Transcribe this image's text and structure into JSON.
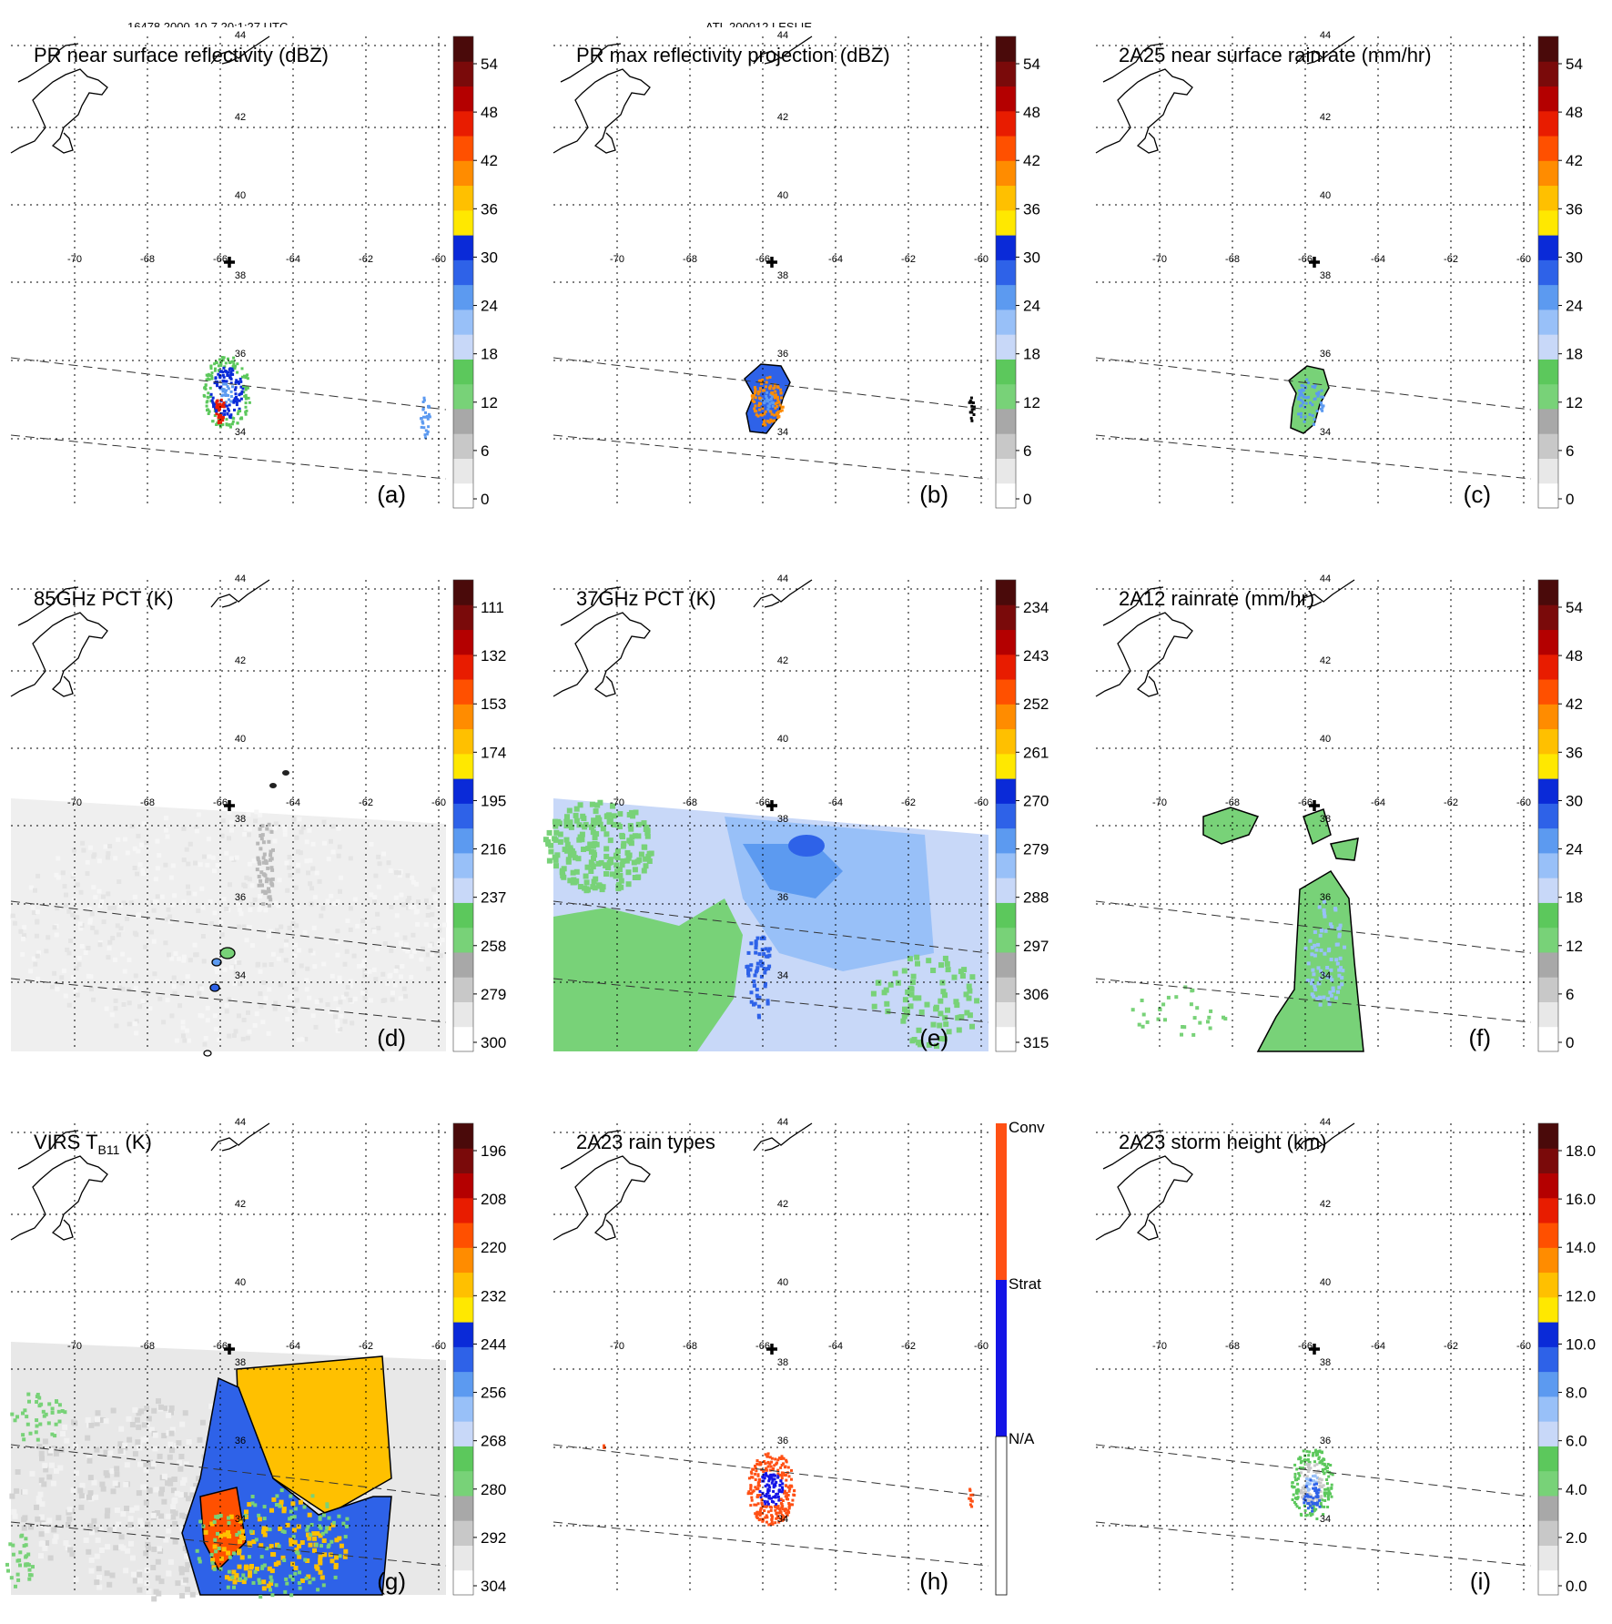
{
  "header": {
    "left": "16478 2000-10-7 20:1:27 UTC",
    "center": "ATL 200012 LESLIE"
  },
  "map": {
    "lon_labels": [
      "-70",
      "-68",
      "-66",
      "-64",
      "-62",
      "-60"
    ],
    "lat_labels": [
      "44",
      "42",
      "40",
      "38",
      "36",
      "34"
    ]
  },
  "colors": {
    "precip_scale": [
      "#ffffff",
      "#e8e8e8",
      "#c8c8c8",
      "#a8a8a8",
      "#78d278",
      "#5cc85c",
      "#c8d8f8",
      "#98c0f8",
      "#5c9af0",
      "#2e62e8",
      "#0a2ad8",
      "#ffe800",
      "#ffc000",
      "#ff8c00",
      "#ff5000",
      "#e81c00",
      "#b40000",
      "#7a0a0a",
      "#4a0a0a"
    ],
    "rain_types": [
      "#ffffff",
      "#1414e6",
      "#ff5014"
    ]
  },
  "panels": [
    {
      "id": "a",
      "title": "PR near surface reflectivity (dBZ)",
      "label": "(a)",
      "colorbar": [
        "0",
        "6",
        "12",
        "18",
        "24",
        "30",
        "36",
        "42",
        "48",
        "54"
      ]
    },
    {
      "id": "b",
      "title": "PR max reflectivity projection (dBZ)",
      "label": "(b)",
      "colorbar": [
        "0",
        "6",
        "12",
        "18",
        "24",
        "30",
        "36",
        "42",
        "48",
        "54"
      ]
    },
    {
      "id": "c",
      "title": "2A25 near surface rainrate (mm/hr)",
      "label": "(c)",
      "colorbar": [
        "0",
        "6",
        "12",
        "18",
        "24",
        "30",
        "36",
        "42",
        "48",
        "54"
      ]
    },
    {
      "id": "d",
      "title": "85GHz PCT (K)",
      "label": "(d)",
      "colorbar": [
        "300",
        "279",
        "258",
        "237",
        "216",
        "195",
        "174",
        "153",
        "132",
        "111"
      ]
    },
    {
      "id": "e",
      "title": "37GHz PCT (K)",
      "label": "(e)",
      "colorbar": [
        "315",
        "306",
        "297",
        "288",
        "279",
        "270",
        "261",
        "252",
        "243",
        "234"
      ]
    },
    {
      "id": "f",
      "title": "2A12 rainrate (mm/hr)",
      "label": "(f)",
      "colorbar": [
        "0",
        "6",
        "12",
        "18",
        "24",
        "30",
        "36",
        "42",
        "48",
        "54"
      ]
    },
    {
      "id": "g",
      "title": "VIRS T",
      "title_sub": "B11",
      "title_suffix": " (K)",
      "label": "(g)",
      "colorbar": [
        "304",
        "292",
        "280",
        "268",
        "256",
        "244",
        "232",
        "220",
        "208",
        "196"
      ]
    },
    {
      "id": "h",
      "title": "2A23 rain types",
      "label": "(h)",
      "colorbar": [
        "N/A",
        "Strat",
        "Conv"
      ]
    },
    {
      "id": "i",
      "title": "2A23 storm height (km)",
      "label": "(i)",
      "colorbar": [
        "0.0",
        "2.0",
        "4.0",
        "6.0",
        "8.0",
        "10.0",
        "12.0",
        "14.0",
        "16.0",
        "18.0"
      ]
    }
  ]
}
